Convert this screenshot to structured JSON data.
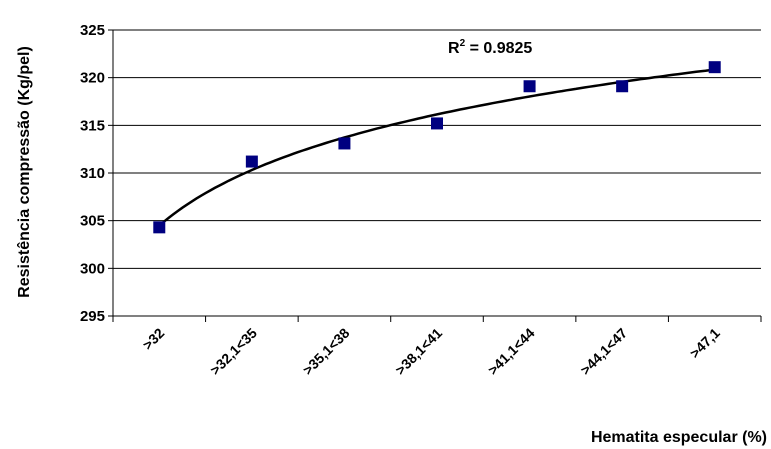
{
  "chart_data": {
    "type": "scatter",
    "categories": [
      ">32",
      ">32,1<35",
      ">35,1<38",
      ">38,1<41",
      ">41,1<44",
      ">44,1<47",
      ">47,1"
    ],
    "series": [
      {
        "values": [
          304.3,
          311.2,
          313.1,
          315.2,
          319.1,
          319.1,
          321.1
        ],
        "color": "#000080",
        "marker": "square"
      }
    ],
    "trendline": {
      "type": "logarithmic",
      "label": "R",
      "label_sup": "2",
      "label_value": " = 0.9825",
      "color": "#000000"
    },
    "xlabel": "Hematita especular (%)",
    "ylabel": "Resistência compressão (Kg/pel)",
    "ylim": [
      295,
      325
    ],
    "yticks": [
      "295",
      "300",
      "305",
      "310",
      "315",
      "320",
      "325"
    ],
    "ytick_values": [
      295,
      300,
      305,
      310,
      315,
      320,
      325
    ],
    "grid": "horizontal",
    "legend": "none"
  }
}
